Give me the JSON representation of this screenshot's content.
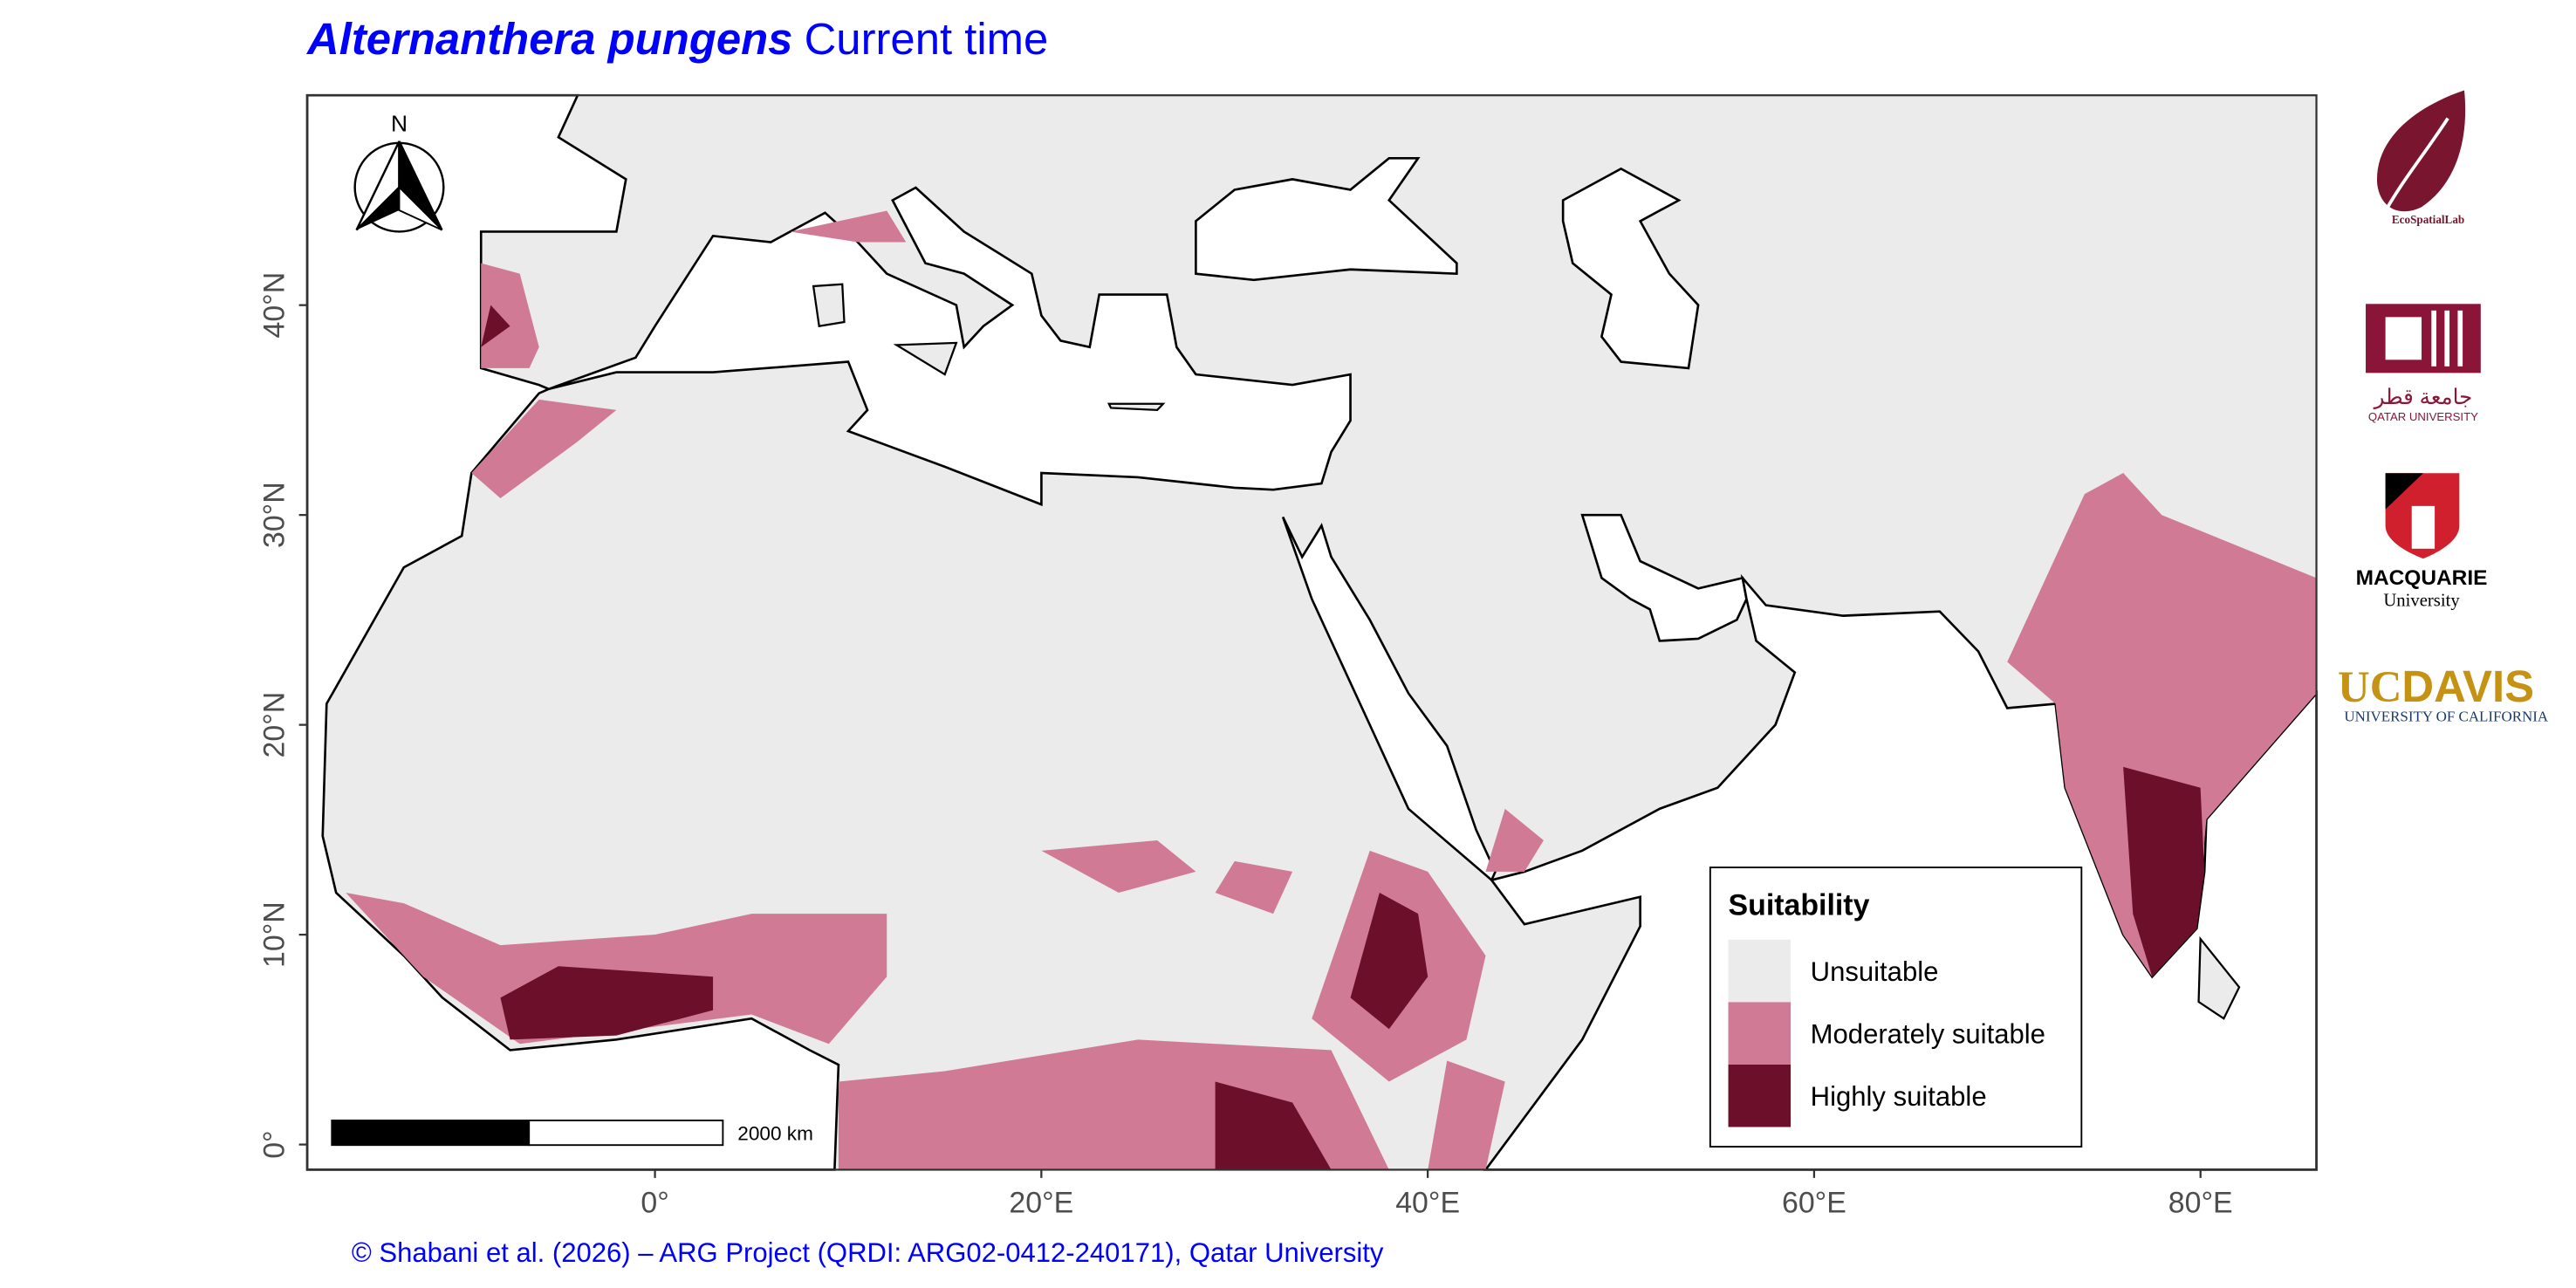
{
  "title": {
    "species": "Alternanthera pungens",
    "period": "Current time"
  },
  "map": {
    "xlim": [
      -18,
      86
    ],
    "ylim": [
      -1.2,
      50
    ],
    "xticks": [
      {
        "value": 0,
        "label": "0°"
      },
      {
        "value": 20,
        "label": "20°E"
      },
      {
        "value": 40,
        "label": "40°E"
      },
      {
        "value": 60,
        "label": "60°E"
      },
      {
        "value": 80,
        "label": "80°E"
      }
    ],
    "yticks": [
      {
        "value": 0,
        "label": "0°"
      },
      {
        "value": 10,
        "label": "10°N"
      },
      {
        "value": 20,
        "label": "20°N"
      },
      {
        "value": 30,
        "label": "30°N"
      },
      {
        "value": 40,
        "label": "40°N"
      }
    ]
  },
  "north_arrow": "N",
  "scale_bar": "2000 km",
  "legend": {
    "title": "Suitability",
    "items": [
      {
        "label": "Unsuitable",
        "color": "#ebebeb"
      },
      {
        "label": "Moderately suitable",
        "color": "#d17a96"
      },
      {
        "label": "Highly suitable",
        "color": "#6b0f2a"
      }
    ]
  },
  "credit": "© Shabani et al. (2026) – ARG Project (QRDI: ARG02-0412-240171), Qatar University",
  "logos": {
    "ecospatial": "EcoSpatialLab",
    "qatar_arabic": "جامعة قطر",
    "qatar": "QATAR UNIVERSITY",
    "macquarie": "MACQUARIE",
    "macquarie_sub": "University",
    "ucdavis_uc": "UC",
    "ucdavis_davis": "DAVIS",
    "ucdavis_sub": "UNIVERSITY OF CALIFORNIA"
  }
}
